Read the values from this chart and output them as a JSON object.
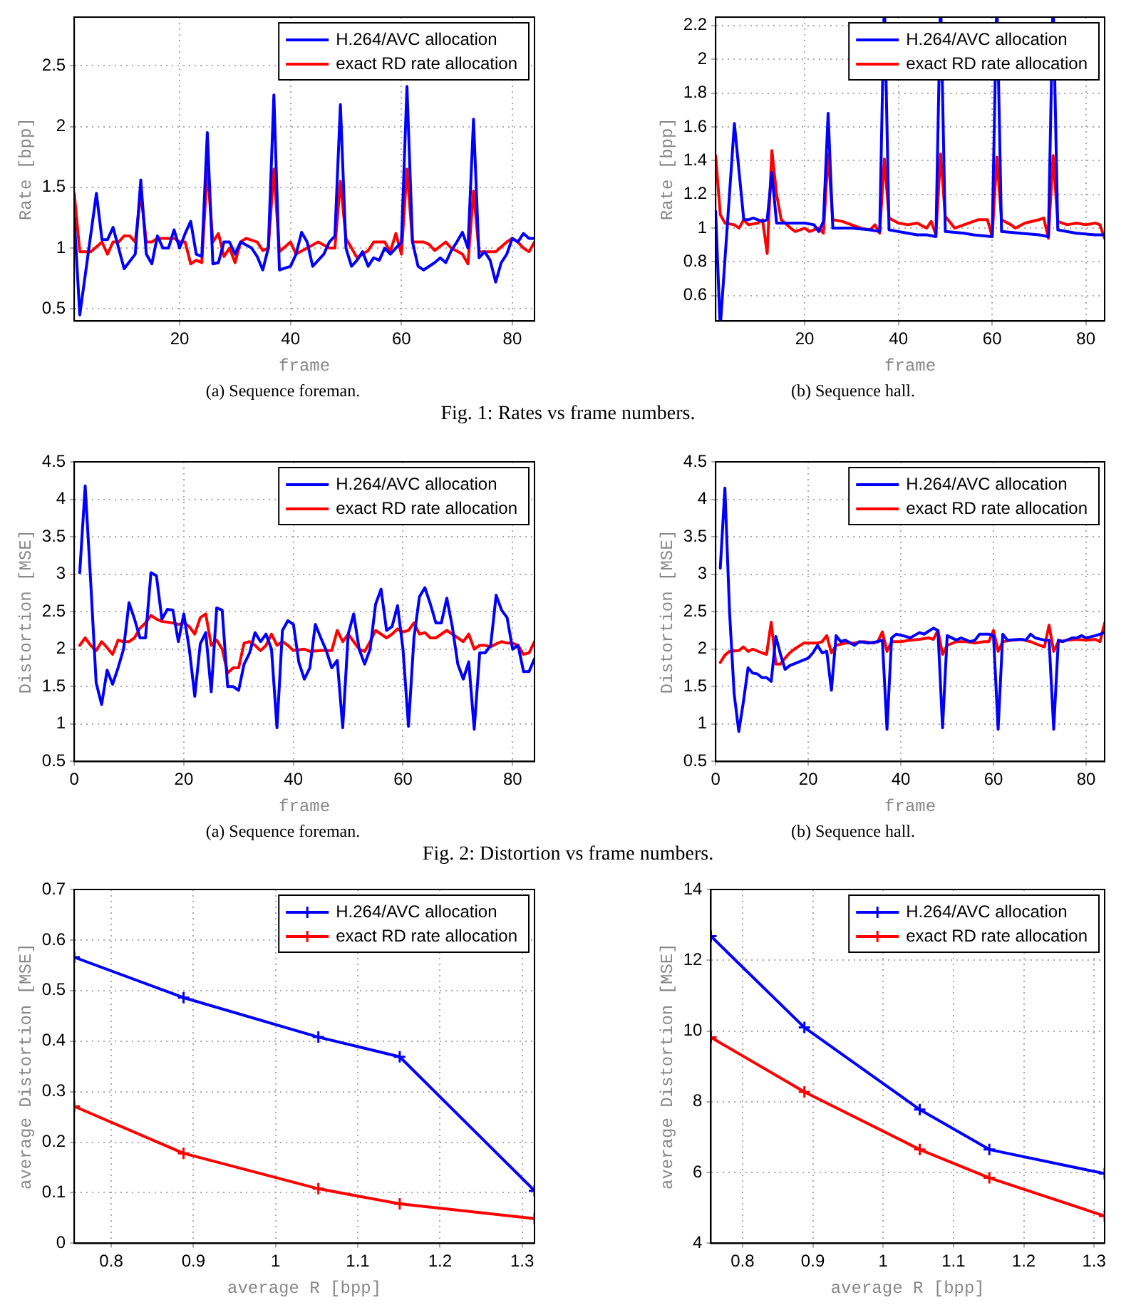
{
  "chart_data": [
    {
      "type": "line",
      "xlabel": "frame",
      "ylabel": "Rate [bpp]",
      "xlim": [
        1,
        84
      ],
      "xticks": [
        20,
        40,
        60,
        80
      ],
      "ylim": [
        0.4,
        2.9
      ],
      "yticks": [
        0.5,
        1,
        1.5,
        2,
        2.5
      ],
      "grid": true,
      "legend": "top right",
      "annotations": [
        "(a) Sequence foreman.",
        "Fig. 1: Rates vs frame numbers."
      ],
      "series": [
        {
          "name": "H.264/AVC allocation",
          "color": "#0000ff",
          "x": [
            1,
            2,
            5,
            6,
            7,
            8,
            9,
            10,
            12,
            13,
            14,
            15,
            16,
            17,
            18,
            19,
            20,
            21,
            22,
            23,
            24,
            25,
            26,
            27,
            28,
            29,
            30,
            31,
            33,
            34,
            35,
            36,
            37,
            38,
            40,
            41,
            42,
            43,
            44,
            46,
            47,
            48,
            49,
            50,
            51,
            52,
            53,
            54,
            55,
            56,
            57,
            58,
            59,
            60,
            61,
            62,
            63,
            64,
            66,
            67,
            68,
            69,
            70,
            71,
            72,
            73,
            74,
            75,
            76,
            77,
            78,
            79,
            80,
            81,
            82,
            83,
            84
          ],
          "values": [
            1.25,
            0.45,
            1.45,
            1.07,
            1.07,
            1.17,
            1.0,
            0.83,
            0.95,
            1.56,
            0.95,
            0.87,
            1.1,
            1.0,
            1.0,
            1.15,
            1.0,
            1.12,
            1.22,
            0.95,
            0.93,
            1.95,
            0.87,
            0.88,
            1.05,
            1.05,
            0.95,
            1.05,
            1.0,
            0.93,
            0.82,
            1.0,
            2.26,
            0.82,
            0.85,
            0.95,
            1.13,
            1.05,
            0.85,
            0.95,
            1.05,
            1.1,
            2.18,
            1.0,
            0.85,
            0.9,
            0.97,
            0.85,
            0.92,
            0.9,
            1.0,
            0.95,
            1.0,
            1.05,
            2.33,
            1.05,
            0.85,
            0.82,
            0.88,
            0.92,
            0.88,
            0.98,
            1.05,
            1.13,
            1.0,
            2.06,
            0.92,
            0.97,
            0.9,
            0.72,
            0.88,
            0.95,
            1.08,
            1.05,
            1.12,
            1.08,
            1.08
          ]
        },
        {
          "name": "exact RD rate allocation",
          "color": "#ff0000",
          "x": [
            1,
            2,
            4,
            6,
            7,
            8,
            9,
            10,
            11,
            12,
            13,
            14,
            15,
            16,
            19,
            20,
            21,
            22,
            23,
            24,
            25,
            26,
            27,
            28,
            29,
            30,
            31,
            32,
            34,
            35,
            36,
            37,
            38,
            40,
            41,
            43,
            45,
            47,
            48,
            49,
            50,
            51,
            52,
            54,
            55,
            57,
            58,
            59,
            60,
            61,
            62,
            64,
            65,
            66,
            68,
            69,
            71,
            72,
            73,
            74,
            77,
            79,
            80,
            81,
            82,
            83,
            84
          ],
          "values": [
            1.45,
            0.97,
            0.97,
            1.05,
            0.95,
            1.05,
            1.05,
            1.1,
            1.1,
            1.05,
            1.45,
            1.05,
            1.05,
            1.08,
            1.08,
            1.05,
            1.05,
            0.87,
            0.9,
            0.88,
            1.65,
            1.05,
            1.12,
            0.93,
            1.0,
            0.88,
            1.05,
            1.08,
            1.05,
            0.98,
            1.0,
            1.65,
            0.97,
            1.05,
            0.95,
            1.0,
            1.05,
            1.0,
            1.0,
            1.55,
            1.08,
            1.0,
            0.92,
            0.98,
            1.05,
            1.05,
            0.97,
            1.12,
            0.95,
            1.65,
            1.05,
            1.05,
            1.03,
            0.98,
            1.05,
            1.0,
            0.95,
            0.87,
            1.47,
            0.97,
            0.97,
            1.05,
            1.08,
            1.05,
            1.0,
            0.97,
            1.05
          ]
        }
      ]
    },
    {
      "type": "line",
      "xlabel": "frame",
      "ylabel": "Rate [bpp]",
      "xlim": [
        1,
        84
      ],
      "xticks": [
        20,
        40,
        60,
        80
      ],
      "ylim": [
        0.45,
        2.25
      ],
      "yticks": [
        0.6,
        0.8,
        1,
        1.2,
        1.4,
        1.6,
        1.8,
        2,
        2.2
      ],
      "grid": true,
      "legend": "top right",
      "annotations": [
        "(b) Sequence hall."
      ],
      "series": [
        {
          "name": "H.264/AVC allocation",
          "color": "#0000ff",
          "x": [
            1,
            1.9,
            2,
            2.1,
            5,
            7,
            8,
            9,
            10,
            11,
            12,
            13,
            14,
            20,
            22,
            23,
            24,
            25,
            26,
            30,
            34,
            36,
            36.9,
            37,
            37.1,
            38,
            40,
            42,
            44,
            46,
            48,
            48.9,
            49,
            49.1,
            50,
            54,
            56,
            60,
            60.9,
            61,
            61.1,
            62,
            66,
            70,
            72,
            72.9,
            73,
            73.1,
            74,
            78,
            82,
            84
          ],
          "values": [
            1.1,
            0.46,
            null,
            0.46,
            1.62,
            1.05,
            1.05,
            1.06,
            1.05,
            1.04,
            1.05,
            1.33,
            1.03,
            1.03,
            1.02,
            0.98,
            1.04,
            1.68,
            1.0,
            1.0,
            0.99,
            0.98,
            2.24,
            null,
            2.24,
            0.99,
            0.98,
            0.97,
            0.96,
            0.96,
            0.95,
            2.24,
            null,
            2.24,
            0.98,
            0.97,
            0.96,
            0.95,
            2.24,
            null,
            2.24,
            0.98,
            0.97,
            0.96,
            0.95,
            2.24,
            null,
            2.24,
            0.99,
            0.97,
            0.96,
            0.96
          ]
        },
        {
          "name": "exact RD rate allocation",
          "color": "#ff0000",
          "x": [
            1,
            2,
            3,
            5,
            6,
            7,
            8,
            10,
            11,
            12,
            13,
            14,
            15,
            17,
            18,
            20,
            21,
            23,
            24,
            25,
            26,
            28,
            30,
            32,
            34,
            35,
            36,
            37,
            38,
            40,
            42,
            44,
            46,
            47,
            48,
            49,
            50,
            52,
            54,
            57,
            59,
            60,
            61,
            62,
            64,
            65,
            67,
            70,
            71,
            72,
            73,
            74,
            76,
            78,
            80,
            82,
            83,
            84
          ],
          "values": [
            1.43,
            1.08,
            1.03,
            1.02,
            1.0,
            1.05,
            1.02,
            1.03,
            1.05,
            0.85,
            1.46,
            1.2,
            1.05,
            1.0,
            0.98,
            1.0,
            0.98,
            1.0,
            0.97,
            1.44,
            1.05,
            1.04,
            1.02,
            1.0,
            0.99,
            1.02,
            0.97,
            1.41,
            1.06,
            1.03,
            1.02,
            1.03,
            1.0,
            1.04,
            0.96,
            1.44,
            1.07,
            1.0,
            1.02,
            1.05,
            1.05,
            0.95,
            1.42,
            1.05,
            1.02,
            1.0,
            1.03,
            1.05,
            1.06,
            0.94,
            1.43,
            1.04,
            1.02,
            1.03,
            1.02,
            1.03,
            1.02,
            0.94
          ]
        }
      ]
    },
    {
      "type": "line",
      "xlabel": "frame",
      "ylabel": "Distortion [MSE]",
      "xlim": [
        0,
        84
      ],
      "xticks": [
        0,
        20,
        40,
        60,
        80
      ],
      "ylim": [
        0.5,
        4.5
      ],
      "yticks": [
        0.5,
        1,
        1.5,
        2,
        2.5,
        3,
        3.5,
        4,
        4.5
      ],
      "grid": true,
      "legend": "top right",
      "annotations": [
        "(a) Sequence foreman.",
        "Fig. 2: Distortion vs frame numbers."
      ],
      "series": [
        {
          "name": "H.264/AVC allocation",
          "color": "#0000ff",
          "x": [
            1,
            2,
            3,
            4,
            5,
            6,
            7,
            8,
            9,
            10,
            11,
            12,
            13,
            14,
            15,
            16,
            17,
            18,
            19,
            20,
            21,
            22,
            23,
            24,
            25,
            26,
            27,
            28,
            29,
            30,
            31,
            32,
            33,
            34,
            35,
            36,
            37,
            38,
            39,
            40,
            41,
            42,
            43,
            44,
            45,
            46,
            47,
            48,
            49,
            50,
            51,
            52,
            53,
            54,
            55,
            56,
            57,
            58,
            59,
            60,
            61,
            62,
            63,
            64,
            65,
            66,
            67,
            68,
            69,
            70,
            71,
            72,
            73,
            74,
            75,
            76,
            77,
            78,
            79,
            80,
            81,
            82,
            83,
            84
          ],
          "values": [
            3.02,
            4.18,
            2.9,
            1.55,
            1.26,
            1.72,
            1.53,
            1.75,
            2.0,
            2.62,
            2.4,
            2.15,
            2.15,
            3.02,
            2.98,
            2.4,
            2.53,
            2.52,
            2.1,
            2.47,
            2.0,
            1.37,
            2.07,
            2.22,
            1.43,
            2.55,
            2.52,
            1.5,
            1.5,
            1.45,
            1.8,
            1.95,
            2.22,
            2.1,
            2.2,
            2.0,
            0.95,
            2.25,
            2.38,
            2.33,
            1.82,
            1.6,
            1.75,
            2.33,
            2.15,
            1.98,
            1.75,
            1.85,
            0.95,
            2.2,
            2.47,
            2.0,
            1.8,
            2.0,
            2.6,
            2.8,
            2.25,
            2.3,
            2.58,
            2.0,
            0.97,
            2.15,
            2.7,
            2.82,
            2.6,
            2.35,
            2.35,
            2.68,
            2.3,
            1.8,
            1.6,
            1.83,
            0.93,
            1.95,
            1.95,
            2.05,
            2.72,
            2.52,
            2.42,
            2.0,
            2.05,
            1.7,
            1.7,
            1.87
          ]
        },
        {
          "name": "exact RD rate allocation",
          "color": "#ff0000",
          "x": [
            1,
            2,
            3,
            4,
            5,
            6,
            7,
            8,
            9,
            10,
            11,
            12,
            13,
            14,
            15,
            16,
            18,
            19,
            20,
            21,
            22,
            23,
            24,
            25,
            26,
            27,
            28,
            29,
            30,
            31,
            32,
            33,
            34,
            35,
            36,
            37,
            38,
            39,
            40,
            42,
            43,
            45,
            47,
            48,
            49,
            50,
            51,
            52,
            53,
            54,
            55,
            56,
            57,
            58,
            59,
            60,
            61,
            62,
            63,
            64,
            65,
            66,
            68,
            69,
            70,
            71,
            72,
            73,
            74,
            75,
            76,
            77,
            78,
            79,
            80,
            81,
            82,
            83,
            84
          ],
          "values": [
            2.05,
            2.15,
            2.05,
            1.98,
            2.1,
            2.02,
            1.93,
            2.12,
            2.1,
            2.1,
            2.15,
            2.28,
            2.35,
            2.45,
            2.4,
            2.37,
            2.35,
            2.33,
            2.35,
            2.3,
            2.2,
            2.42,
            2.47,
            2.05,
            2.12,
            2.0,
            1.68,
            1.75,
            1.75,
            2.08,
            2.1,
            2.05,
            1.98,
            2.05,
            2.2,
            2.05,
            2.1,
            2.05,
            1.98,
            2.0,
            1.97,
            1.98,
            1.98,
            2.25,
            2.1,
            2.2,
            2.1,
            2.0,
            1.97,
            2.1,
            2.25,
            2.2,
            2.15,
            2.2,
            2.27,
            2.23,
            2.25,
            2.35,
            2.2,
            2.22,
            2.15,
            2.15,
            2.25,
            2.2,
            2.15,
            2.1,
            2.2,
            2.0,
            2.05,
            2.05,
            2.03,
            2.07,
            2.1,
            2.08,
            2.08,
            2.05,
            1.93,
            1.95,
            2.1
          ]
        }
      ]
    },
    {
      "type": "line",
      "xlabel": "frame",
      "ylabel": "Distortion [MSE]",
      "xlim": [
        0,
        84
      ],
      "xticks": [
        0,
        20,
        40,
        60,
        80
      ],
      "ylim": [
        0.5,
        4.5
      ],
      "yticks": [
        0.5,
        1,
        1.5,
        2,
        2.5,
        3,
        3.5,
        4,
        4.5
      ],
      "grid": true,
      "legend": "top right",
      "annotations": [
        "(b) Sequence hall."
      ],
      "series": [
        {
          "name": "H.264/AVC allocation",
          "color": "#0000ff",
          "x": [
            1,
            2,
            3,
            4,
            5,
            6,
            7,
            8,
            9,
            10,
            11,
            12,
            13,
            14,
            15,
            16,
            18,
            20,
            21,
            22,
            23,
            24,
            25,
            26,
            27,
            28,
            30,
            31,
            33,
            35,
            36,
            37,
            38,
            39,
            41,
            42,
            44,
            45,
            47,
            48,
            49,
            50,
            52,
            53,
            55,
            56,
            57,
            59,
            60,
            61,
            62,
            63,
            66,
            67,
            68,
            69,
            71,
            72,
            73,
            74,
            75,
            77,
            78,
            79,
            80,
            82,
            84
          ],
          "values": [
            3.08,
            4.15,
            2.5,
            1.4,
            0.9,
            1.3,
            1.75,
            1.68,
            1.67,
            1.62,
            1.62,
            1.57,
            2.17,
            1.93,
            1.73,
            1.78,
            1.83,
            1.88,
            1.95,
            2.05,
            1.95,
            1.97,
            1.45,
            2.18,
            2.1,
            2.12,
            2.05,
            2.1,
            2.08,
            2.1,
            2.12,
            0.93,
            2.15,
            2.2,
            2.17,
            2.15,
            2.22,
            2.2,
            2.28,
            2.25,
            0.95,
            2.18,
            2.12,
            2.15,
            2.1,
            2.12,
            2.2,
            2.2,
            2.18,
            0.93,
            2.2,
            2.12,
            2.13,
            2.12,
            2.2,
            2.15,
            2.12,
            2.12,
            0.93,
            2.12,
            2.1,
            2.15,
            2.15,
            2.18,
            2.15,
            2.18,
            2.22
          ]
        },
        {
          "name": "exact RD rate allocation",
          "color": "#ff0000",
          "x": [
            1,
            2,
            3,
            5,
            6,
            7,
            8,
            10,
            11,
            12,
            13,
            14,
            15,
            16,
            17,
            19,
            22,
            23,
            24,
            25,
            26,
            28,
            30,
            32,
            34,
            35,
            36,
            37,
            38,
            40,
            42,
            44,
            46,
            47,
            48,
            49,
            50,
            52,
            54,
            56,
            58,
            59,
            60,
            61,
            62,
            64,
            66,
            68,
            70,
            71,
            72,
            73,
            74,
            76,
            78,
            80,
            82,
            83,
            84
          ],
          "values": [
            1.82,
            1.92,
            1.97,
            1.98,
            2.03,
            1.97,
            2.0,
            1.95,
            1.93,
            2.36,
            1.8,
            1.8,
            1.88,
            1.95,
            2.0,
            2.08,
            2.08,
            2.1,
            2.18,
            1.95,
            2.05,
            2.08,
            2.08,
            2.1,
            2.08,
            2.1,
            2.23,
            1.97,
            2.1,
            2.1,
            2.12,
            2.13,
            2.15,
            2.13,
            2.25,
            1.93,
            2.05,
            2.1,
            2.1,
            2.08,
            2.1,
            2.1,
            2.25,
            1.97,
            2.1,
            2.12,
            2.13,
            2.1,
            2.05,
            2.03,
            2.32,
            1.97,
            2.1,
            2.12,
            2.13,
            2.12,
            2.13,
            2.1,
            2.35
          ]
        }
      ]
    },
    {
      "type": "line",
      "xlabel": "average R [bpp]",
      "ylabel": "average Distortion [MSE]",
      "xlim": [
        0.755,
        1.315
      ],
      "xticks": [
        0.8,
        0.9,
        1,
        1.1,
        1.2,
        1.3
      ],
      "ylim": [
        0,
        0.7
      ],
      "yticks": [
        0,
        0.1,
        0.2,
        0.3,
        0.4,
        0.5,
        0.6,
        0.7
      ],
      "grid": true,
      "legend": "top right",
      "marker": "cross",
      "series": [
        {
          "name": "H.264/AVC allocation",
          "color": "#0000ff",
          "x": [
            0.755,
            0.888,
            1.052,
            1.151,
            1.315
          ],
          "values": [
            0.566,
            0.486,
            0.408,
            0.369,
            0.104
          ]
        },
        {
          "name": "exact RD rate allocation",
          "color": "#ff0000",
          "x": [
            0.755,
            0.888,
            1.052,
            1.151,
            1.315
          ],
          "values": [
            0.271,
            0.178,
            0.108,
            0.078,
            0.049
          ]
        }
      ]
    },
    {
      "type": "line",
      "xlabel": "average R [bpp]",
      "ylabel": "average Distortion [MSE]",
      "xlim": [
        0.755,
        1.315
      ],
      "xticks": [
        0.8,
        0.9,
        1,
        1.1,
        1.2,
        1.3
      ],
      "ylim": [
        4,
        14
      ],
      "yticks": [
        4,
        6,
        8,
        10,
        12,
        14
      ],
      "grid": true,
      "legend": "top right",
      "marker": "cross",
      "series": [
        {
          "name": "H.264/AVC allocation",
          "color": "#0000ff",
          "x": [
            0.755,
            0.888,
            1.052,
            1.151,
            1.315
          ],
          "values": [
            12.68,
            10.1,
            7.78,
            6.65,
            5.97
          ]
        },
        {
          "name": "exact RD rate allocation",
          "color": "#ff0000",
          "x": [
            0.755,
            0.888,
            1.052,
            1.151,
            1.315
          ],
          "values": [
            9.82,
            8.28,
            6.65,
            5.85,
            4.77
          ]
        }
      ]
    }
  ]
}
